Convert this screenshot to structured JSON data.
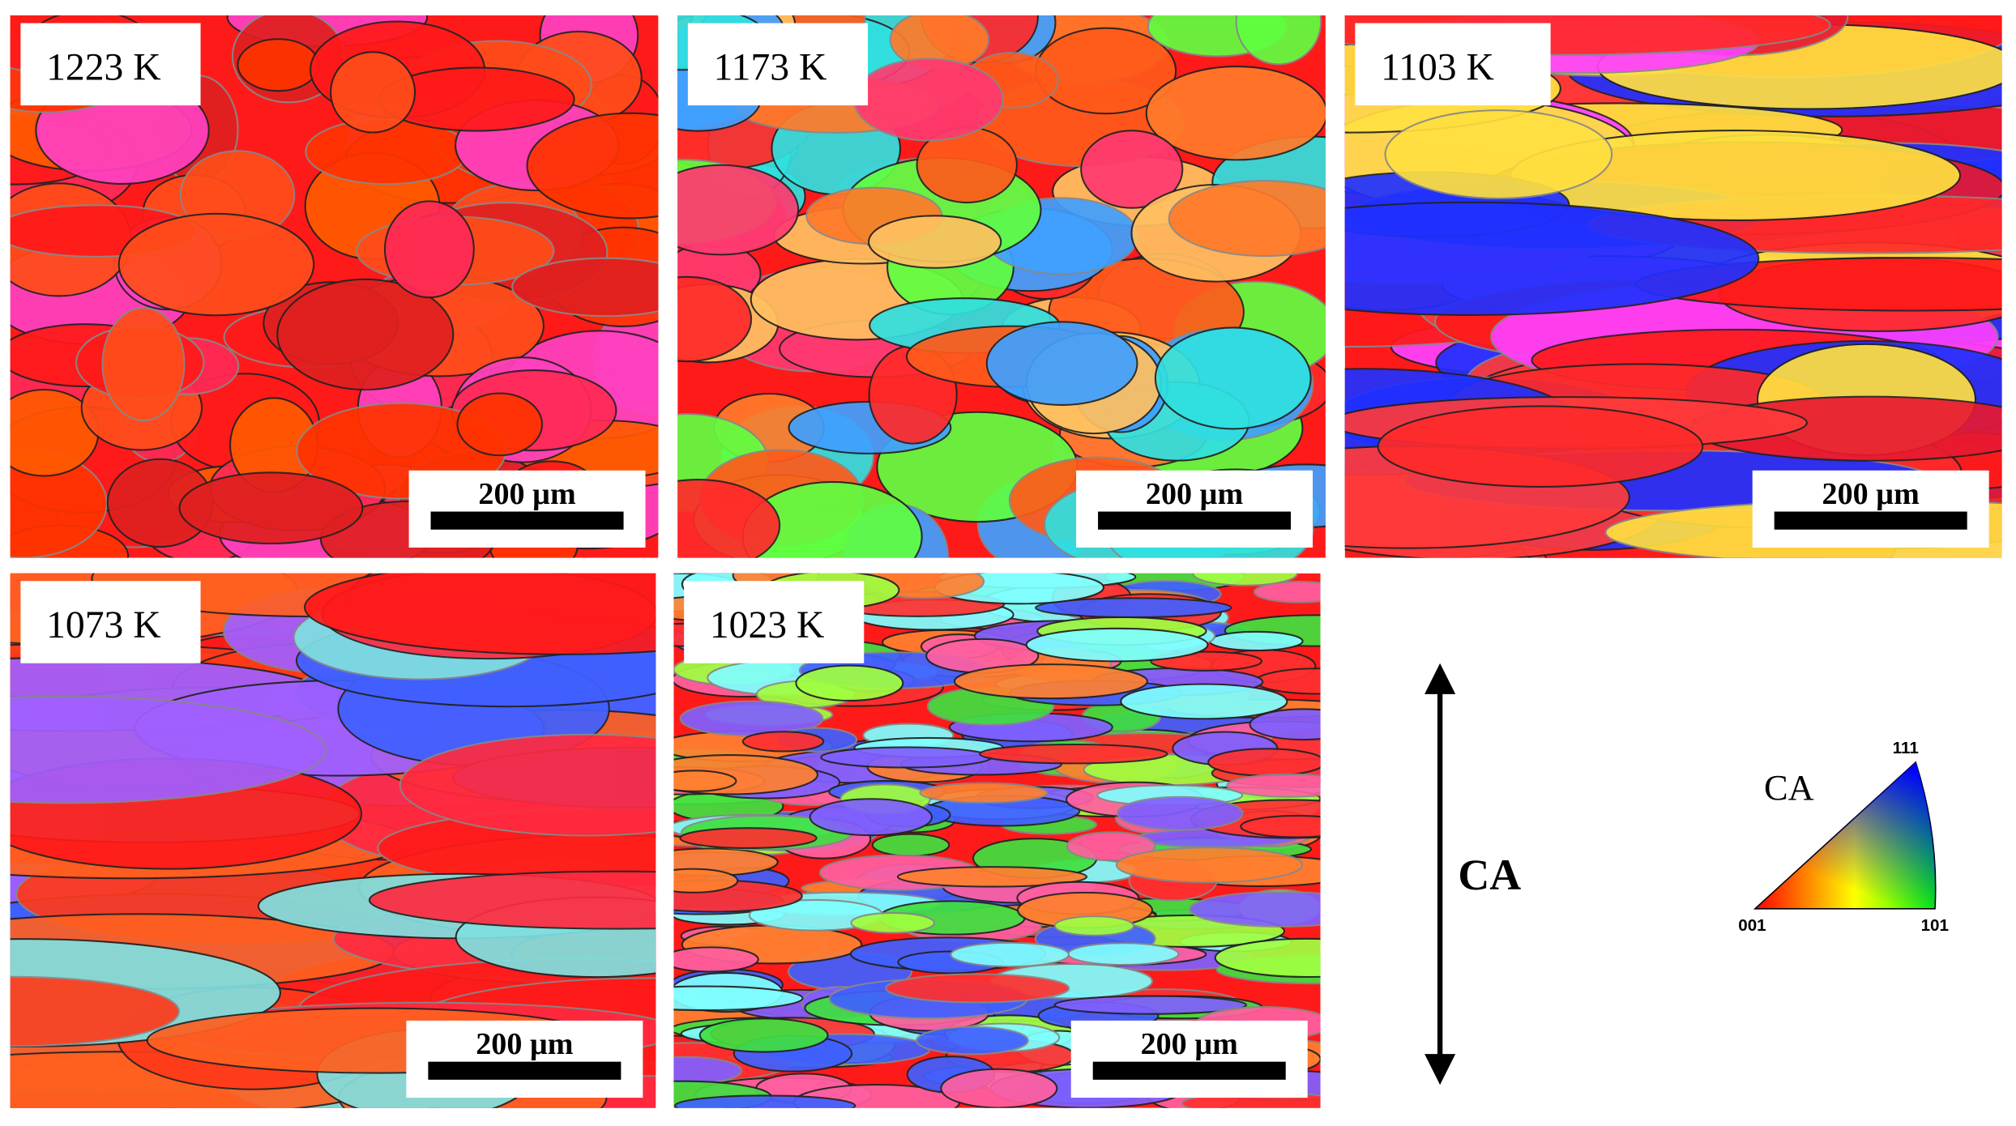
{
  "panels": [
    {
      "label": "1223 K",
      "scale_bar": "200 µm"
    },
    {
      "label": "1173 K",
      "scale_bar": "200 µm"
    },
    {
      "label": "1103 K",
      "scale_bar": "200 µm"
    },
    {
      "label": "1073 K",
      "scale_bar": "200 µm"
    },
    {
      "label": "1023 K",
      "scale_bar": "200 µm"
    }
  ],
  "direction_label": "CA",
  "legend": {
    "title": "CA",
    "corners": [
      "001",
      "101",
      "111"
    ]
  }
}
